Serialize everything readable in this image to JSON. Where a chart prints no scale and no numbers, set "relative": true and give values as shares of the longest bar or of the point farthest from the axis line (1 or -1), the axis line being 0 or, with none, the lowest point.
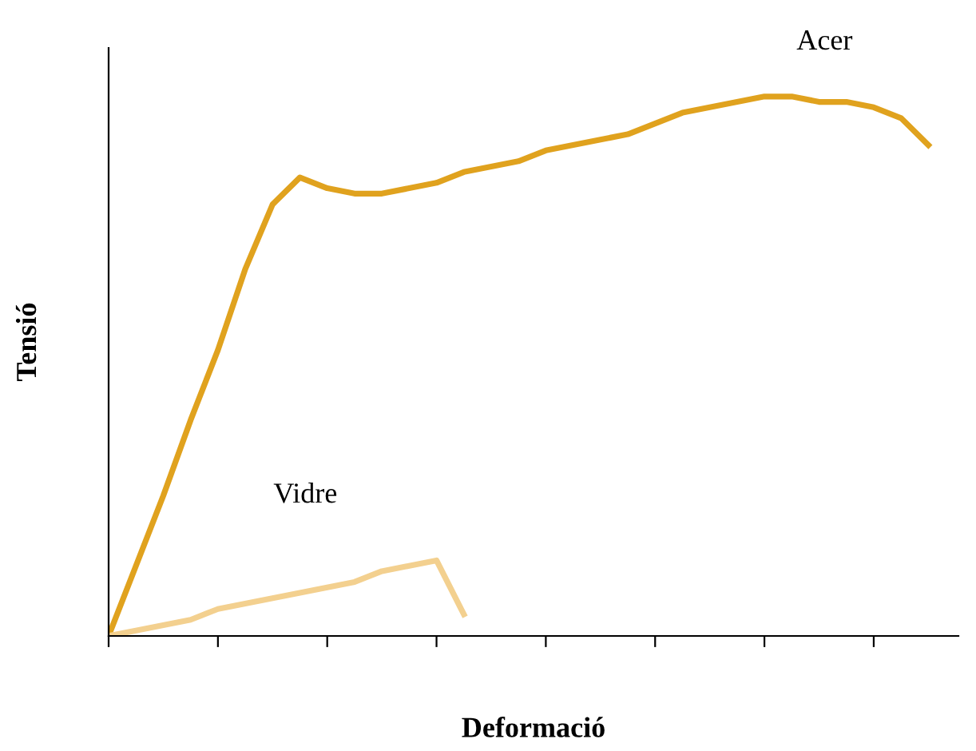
{
  "chart_data": {
    "type": "line",
    "relative": true,
    "xlabel": "Deformació",
    "ylabel": "Tensió",
    "categories": [
      null,
      null,
      null,
      null,
      null,
      null,
      null,
      null,
      null,
      null,
      null,
      null,
      null,
      null,
      null,
      null,
      null,
      null,
      null,
      null,
      null,
      null,
      null,
      null,
      null,
      null,
      null,
      null,
      null,
      null,
      null
    ],
    "grid": false,
    "legend": false,
    "marker": "none",
    "line_style": "solid",
    "series": [
      {
        "name": "Acer",
        "color": "#e0a21e",
        "values": [
          0,
          0.13,
          0.26,
          0.4,
          0.53,
          0.68,
          0.8,
          0.85,
          0.83,
          0.82,
          0.82,
          0.83,
          0.84,
          0.86,
          0.87,
          0.88,
          0.9,
          0.91,
          0.92,
          0.93,
          0.95,
          0.97,
          0.98,
          0.99,
          1.0,
          1.0,
          0.99,
          0.99,
          0.98,
          0.96,
          0.91
        ]
      },
      {
        "name": "Vidre",
        "color": "#f3d08f",
        "values": [
          0,
          0.01,
          0.02,
          0.03,
          0.05,
          0.06,
          0.07,
          0.08,
          0.09,
          0.1,
          0.12,
          0.13,
          0.14,
          0.04,
          null,
          null,
          null,
          null,
          null,
          null,
          null,
          null,
          null,
          null,
          null,
          null,
          null,
          null,
          null,
          null,
          null
        ]
      }
    ]
  }
}
